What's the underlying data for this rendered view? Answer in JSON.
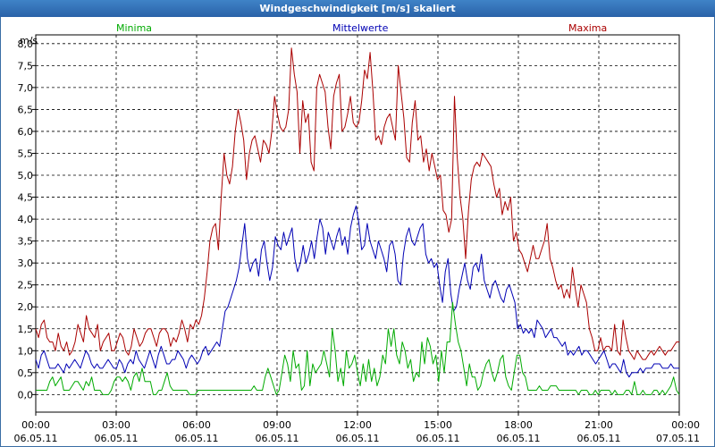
{
  "window": {
    "title": "Windgeschwindigkeit [m/s] skaliert"
  },
  "chart_data": {
    "type": "line",
    "title": "Windgeschwindigkeit [m/s] skaliert",
    "ylabel": "m/s",
    "xlabel": "",
    "ylim": [
      -0.4,
      8.2
    ],
    "xlim": [
      0,
      24
    ],
    "yticks": [
      "0,0",
      "0,5",
      "1,0",
      "1,5",
      "2,0",
      "2,5",
      "3,0",
      "3,5",
      "4,0",
      "4,5",
      "5,0",
      "5,5",
      "6,0",
      "6,5",
      "7,0",
      "7,5",
      "8,0"
    ],
    "xticks": [
      {
        "time": "00:00",
        "date": "06.05.11"
      },
      {
        "time": "03:00",
        "date": "06.05.11"
      },
      {
        "time": "06:00",
        "date": "06.05.11"
      },
      {
        "time": "09:00",
        "date": "06.05.11"
      },
      {
        "time": "12:00",
        "date": "06.05.11"
      },
      {
        "time": "15:00",
        "date": "06.05.11"
      },
      {
        "time": "18:00",
        "date": "06.05.11"
      },
      {
        "time": "21:00",
        "date": "06.05.11"
      },
      {
        "time": "00:00",
        "date": "07.05.11"
      }
    ],
    "legend": [
      "Minima",
      "Mittelwerte",
      "Maxima"
    ],
    "colors": {
      "Minima": "#00aa00",
      "Mittelwerte": "#0000b4",
      "Maxima": "#aa0000"
    },
    "series": [
      {
        "name": "Maxima",
        "values": [
          1.5,
          1.3,
          1.6,
          1.7,
          1.3,
          1.2,
          1.2,
          1.0,
          1.4,
          1.1,
          1.0,
          1.2,
          0.9,
          1.0,
          1.2,
          1.6,
          1.4,
          1.2,
          1.8,
          1.5,
          1.4,
          1.3,
          1.6,
          1.0,
          1.2,
          1.3,
          1.4,
          1.0,
          1.0,
          1.2,
          1.4,
          1.3,
          1.0,
          0.9,
          1.1,
          1.5,
          1.3,
          1.1,
          1.2,
          1.4,
          1.5,
          1.5,
          1.3,
          1.1,
          1.4,
          1.5,
          1.5,
          1.4,
          1.1,
          1.3,
          1.2,
          1.4,
          1.7,
          1.5,
          1.2,
          1.6,
          1.5,
          1.7,
          1.6,
          1.8,
          2.2,
          2.8,
          3.5,
          3.8,
          3.9,
          3.3,
          4.5,
          5.5,
          5.0,
          4.8,
          5.2,
          6.0,
          6.5,
          6.2,
          5.8,
          4.9,
          5.5,
          5.8,
          5.9,
          5.6,
          5.3,
          5.8,
          5.7,
          5.5,
          6.0,
          6.8,
          6.4,
          6.1,
          6.0,
          6.1,
          6.5,
          7.9,
          7.3,
          6.9,
          5.5,
          6.7,
          6.2,
          6.4,
          5.3,
          5.1,
          7.0,
          7.3,
          7.1,
          6.9,
          6.1,
          5.6,
          6.8,
          7.1,
          7.3,
          6.0,
          6.1,
          6.4,
          6.8,
          6.2,
          6.1,
          6.2,
          6.7,
          7.4,
          7.2,
          7.8,
          6.9,
          5.8,
          5.9,
          5.7,
          6.1,
          6.3,
          6.4,
          6.1,
          5.8,
          7.5,
          6.9,
          6.3,
          5.4,
          5.3,
          6.2,
          6.7,
          5.8,
          5.9,
          5.3,
          5.6,
          5.1,
          5.5,
          5.2,
          4.9,
          5.0,
          4.2,
          4.1,
          3.7,
          4.0,
          6.8,
          5.4,
          4.5,
          4.0,
          3.1,
          4.2,
          4.9,
          5.2,
          5.3,
          5.2,
          5.5,
          5.4,
          5.3,
          5.2,
          4.8,
          4.5,
          4.7,
          4.1,
          4.4,
          4.2,
          4.5,
          3.5,
          3.7,
          3.3,
          3.2,
          3.0,
          2.8,
          3.1,
          3.4,
          3.1,
          3.1,
          3.3,
          3.5,
          3.9,
          3.1,
          2.9,
          2.6,
          2.4,
          2.5,
          2.2,
          2.4,
          2.2,
          2.9,
          2.4,
          2.0,
          2.5,
          2.3,
          2.1,
          1.5,
          1.3,
          1.0,
          1.0,
          1.3,
          1.0,
          1.1,
          1.1,
          1.0,
          1.6,
          1.0,
          0.9,
          1.7,
          1.3,
          1.0,
          0.9,
          0.8,
          1.0,
          0.9,
          0.8,
          0.8,
          0.9,
          1.0,
          0.9,
          1.0,
          1.1,
          1.0,
          0.9,
          1.0,
          1.0,
          1.1,
          1.2,
          1.2
        ]
      },
      {
        "name": "Mittelwerte",
        "values": [
          0.8,
          0.6,
          0.9,
          1.0,
          0.8,
          0.6,
          0.6,
          0.6,
          0.7,
          0.6,
          0.5,
          0.7,
          0.6,
          0.7,
          0.8,
          0.7,
          0.6,
          0.8,
          1.0,
          0.9,
          0.7,
          0.6,
          0.7,
          0.6,
          0.6,
          0.7,
          0.8,
          0.7,
          0.6,
          0.6,
          0.8,
          0.7,
          0.5,
          0.7,
          0.8,
          0.7,
          1.0,
          0.8,
          0.7,
          0.6,
          0.8,
          1.0,
          0.8,
          0.6,
          0.9,
          1.1,
          0.9,
          0.7,
          0.7,
          0.8,
          0.8,
          1.0,
          0.9,
          0.8,
          0.6,
          0.8,
          0.9,
          0.8,
          0.7,
          0.8,
          1.0,
          1.1,
          0.9,
          1.0,
          1.1,
          1.2,
          1.1,
          1.5,
          1.9,
          2.0,
          2.2,
          2.4,
          2.6,
          2.9,
          3.4,
          3.9,
          3.1,
          2.8,
          3.0,
          3.1,
          2.7,
          3.3,
          3.5,
          3.0,
          2.6,
          2.9,
          3.6,
          3.4,
          3.3,
          3.7,
          3.4,
          3.6,
          3.8,
          3.1,
          2.8,
          3.0,
          3.4,
          3.0,
          3.2,
          3.5,
          3.1,
          3.6,
          4.0,
          3.8,
          3.2,
          3.7,
          3.5,
          3.3,
          3.6,
          3.8,
          3.4,
          3.6,
          3.2,
          3.8,
          4.1,
          4.3,
          3.9,
          3.3,
          3.4,
          3.9,
          3.5,
          3.3,
          3.1,
          3.5,
          3.3,
          3.1,
          2.8,
          3.4,
          3.5,
          3.2,
          2.6,
          2.5,
          3.2,
          3.6,
          3.8,
          3.5,
          3.4,
          3.6,
          3.8,
          3.9,
          3.2,
          3.0,
          3.1,
          2.9,
          3.0,
          2.5,
          2.1,
          2.8,
          3.1,
          2.3,
          1.9,
          2.0,
          2.4,
          2.7,
          3.0,
          2.6,
          2.4,
          2.9,
          3.0,
          2.8,
          3.2,
          2.6,
          2.4,
          2.2,
          2.5,
          2.6,
          2.4,
          2.2,
          2.1,
          2.4,
          2.5,
          2.3,
          2.1,
          1.5,
          1.6,
          1.4,
          1.5,
          1.4,
          1.5,
          1.3,
          1.7,
          1.6,
          1.5,
          1.3,
          1.4,
          1.5,
          1.3,
          1.3,
          1.2,
          1.1,
          1.2,
          0.9,
          1.0,
          0.9,
          1.0,
          1.1,
          0.9,
          1.0,
          1.0,
          0.9,
          0.8,
          0.7,
          0.8,
          0.9,
          1.0,
          0.8,
          0.6,
          0.7,
          0.7,
          0.6,
          0.5,
          0.8,
          0.5,
          0.4,
          0.5,
          0.5,
          0.5,
          0.6,
          0.5,
          0.6,
          0.6,
          0.6,
          0.7,
          0.7,
          0.7,
          0.6,
          0.6,
          0.6,
          0.7,
          0.6,
          0.6,
          0.6
        ]
      },
      {
        "name": "Minima",
        "values": [
          0.1,
          0.1,
          0.1,
          0.1,
          0.1,
          0.3,
          0.4,
          0.2,
          0.3,
          0.4,
          0.1,
          0.1,
          0.1,
          0.2,
          0.3,
          0.3,
          0.2,
          0.1,
          0.3,
          0.2,
          0.4,
          0.1,
          0.1,
          0.1,
          0.0,
          0.0,
          0.0,
          0.1,
          0.3,
          0.4,
          0.4,
          0.3,
          0.4,
          0.3,
          0.1,
          0.4,
          0.5,
          0.3,
          0.6,
          0.3,
          0.3,
          0.3,
          0.0,
          0.0,
          0.1,
          0.1,
          0.3,
          0.5,
          0.2,
          0.1,
          0.1,
          0.1,
          0.1,
          0.1,
          0.1,
          0.0,
          0.0,
          0.0,
          0.1,
          0.1,
          0.1,
          0.1,
          0.1,
          0.1,
          0.1,
          0.1,
          0.1,
          0.1,
          0.1,
          0.1,
          0.1,
          0.1,
          0.1,
          0.1,
          0.1,
          0.1,
          0.1,
          0.1,
          0.2,
          0.1,
          0.1,
          0.1,
          0.4,
          0.6,
          0.4,
          0.2,
          0.0,
          0.1,
          0.5,
          0.9,
          0.7,
          0.3,
          1.0,
          0.6,
          0.7,
          0.1,
          0.2,
          1.0,
          0.2,
          0.7,
          0.5,
          0.6,
          0.7,
          1.0,
          0.7,
          0.4,
          1.5,
          1.0,
          0.3,
          0.6,
          0.2,
          1.0,
          0.6,
          0.7,
          0.9,
          0.5,
          0.2,
          0.7,
          0.3,
          0.8,
          0.3,
          0.6,
          0.2,
          0.4,
          0.9,
          0.7,
          1.5,
          1.1,
          1.5,
          0.9,
          0.7,
          1.2,
          1.0,
          0.6,
          0.8,
          0.3,
          0.5,
          0.4,
          1.2,
          0.7,
          1.3,
          1.1,
          0.7,
          0.9,
          0.3,
          1.0,
          0.5,
          1.2,
          1.2,
          2.1,
          1.6,
          1.2,
          1.0,
          0.6,
          0.2,
          0.7,
          0.4,
          0.4,
          0.1,
          0.2,
          0.5,
          0.7,
          0.8,
          0.5,
          0.3,
          0.5,
          0.8,
          0.9,
          0.4,
          0.2,
          0.1,
          0.5,
          0.9,
          0.9,
          0.5,
          0.4,
          0.1,
          0.1,
          0.1,
          0.1,
          0.2,
          0.1,
          0.1,
          0.1,
          0.2,
          0.2,
          0.2,
          0.1,
          0.1,
          0.1,
          0.1,
          0.1,
          0.1,
          0.1,
          0.0,
          0.1,
          0.1,
          0.1,
          0.0,
          0.0,
          0.1,
          0.0,
          0.1,
          0.1,
          0.1,
          0.1,
          0.0,
          0.1,
          0.0,
          0.0,
          0.0,
          0.1,
          0.1,
          0.0,
          0.3,
          0.0,
          0.0,
          0.1,
          0.0,
          0.0,
          0.0,
          0.1,
          0.1,
          0.0,
          0.1,
          0.0,
          0.1,
          0.2,
          0.4,
          0.1,
          0.0
        ]
      }
    ]
  }
}
